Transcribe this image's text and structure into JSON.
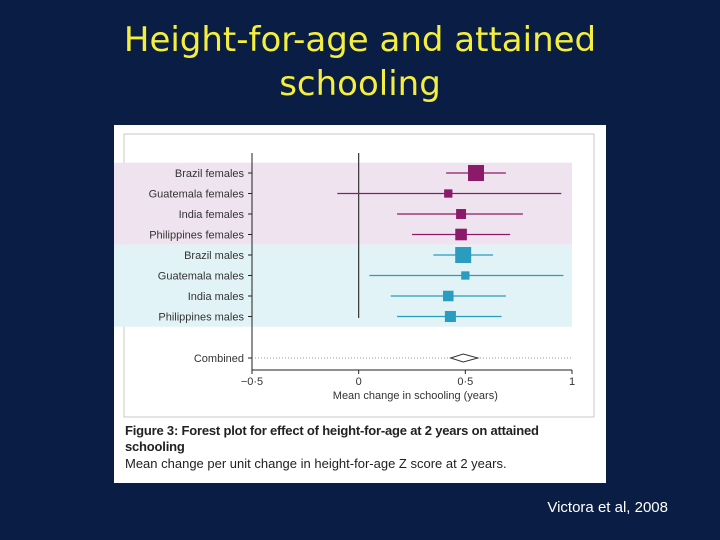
{
  "slide": {
    "title_line1": "Height-for-age and attained",
    "title_line2": "schooling",
    "citation": "Victora et al, 2008"
  },
  "figure": {
    "caption_bold": "Figure 3: Forest plot for effect of height-for-age at 2 years on attained schooling",
    "caption_note": "Mean change per unit change in height-for-age Z score at 2 years."
  },
  "colors": {
    "female": "#8c1a6a",
    "male": "#2a9cbf",
    "female_band": "#efe3f0",
    "male_band": "#e2f3f7",
    "background": "#0a1d44",
    "title": "#f4ee3f"
  },
  "chart_data": {
    "type": "forest",
    "xlabel": "Mean change in schooling (years)",
    "xlim": [
      -0.5,
      1
    ],
    "xticks": [
      -0.5,
      0,
      0.5,
      1
    ],
    "xtick_labels": [
      "−0·5",
      "0",
      "0·5",
      "1"
    ],
    "rows": [
      {
        "label": "Brazil females",
        "est": 0.55,
        "lo": 0.41,
        "hi": 0.69,
        "weight": 1.0,
        "group": "female"
      },
      {
        "label": "Guatemala females",
        "est": 0.42,
        "lo": -0.1,
        "hi": 0.95,
        "weight": 0.3,
        "group": "female"
      },
      {
        "label": "India females",
        "est": 0.48,
        "lo": 0.18,
        "hi": 0.77,
        "weight": 0.45,
        "group": "female"
      },
      {
        "label": "Philippines females",
        "est": 0.48,
        "lo": 0.25,
        "hi": 0.71,
        "weight": 0.6,
        "group": "female"
      },
      {
        "label": "Brazil males",
        "est": 0.49,
        "lo": 0.35,
        "hi": 0.63,
        "weight": 1.0,
        "group": "male"
      },
      {
        "label": "Guatemala males",
        "est": 0.5,
        "lo": 0.05,
        "hi": 0.96,
        "weight": 0.3,
        "group": "male"
      },
      {
        "label": "India males",
        "est": 0.42,
        "lo": 0.15,
        "hi": 0.69,
        "weight": 0.5,
        "group": "male"
      },
      {
        "label": "Philippines males",
        "est": 0.43,
        "lo": 0.18,
        "hi": 0.67,
        "weight": 0.55,
        "group": "male"
      }
    ],
    "combined": {
      "label": "Combined",
      "est": 0.49,
      "lo": 0.45,
      "hi": 0.54
    }
  }
}
